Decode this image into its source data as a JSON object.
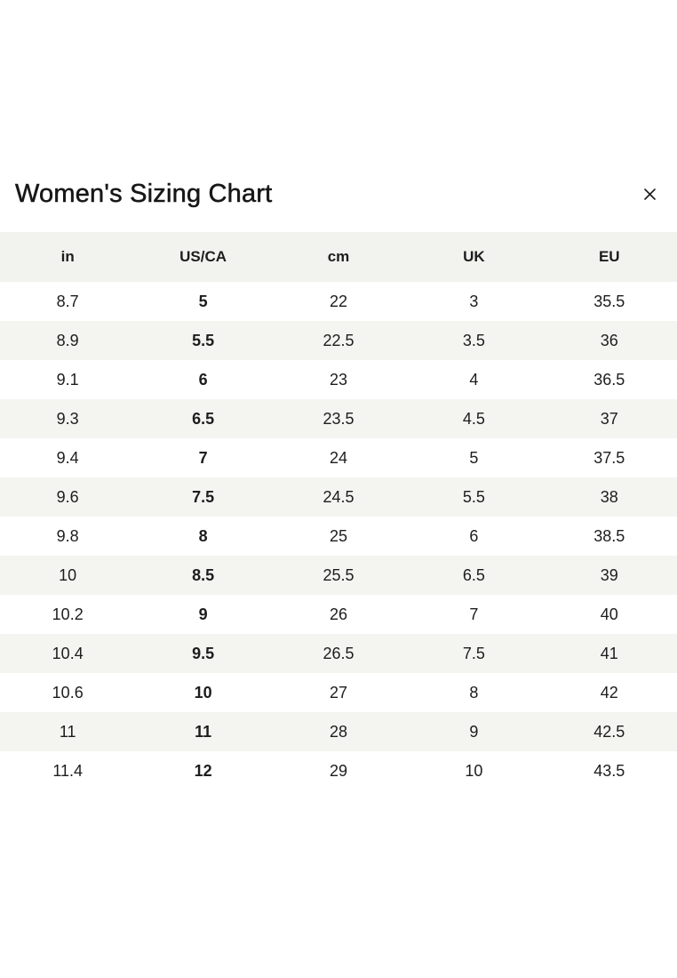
{
  "modal": {
    "title": "Women's Sizing Chart",
    "close_icon": "x-close-icon"
  },
  "sizing_table": {
    "headers": [
      "in",
      "US/CA",
      "cm",
      "UK",
      "EU"
    ],
    "bold_column": "US/CA",
    "rows": [
      [
        "8.7",
        "5",
        "22",
        "3",
        "35.5"
      ],
      [
        "8.9",
        "5.5",
        "22.5",
        "3.5",
        "36"
      ],
      [
        "9.1",
        "6",
        "23",
        "4",
        "36.5"
      ],
      [
        "9.3",
        "6.5",
        "23.5",
        "4.5",
        "37"
      ],
      [
        "9.4",
        "7",
        "24",
        "5",
        "37.5"
      ],
      [
        "9.6",
        "7.5",
        "24.5",
        "5.5",
        "38"
      ],
      [
        "9.8",
        "8",
        "25",
        "6",
        "38.5"
      ],
      [
        "10",
        "8.5",
        "25.5",
        "6.5",
        "39"
      ],
      [
        "10.2",
        "9",
        "26",
        "7",
        "40"
      ],
      [
        "10.4",
        "9.5",
        "26.5",
        "7.5",
        "41"
      ],
      [
        "10.6",
        "10",
        "27",
        "8",
        "42"
      ],
      [
        "11",
        "11",
        "28",
        "9",
        "42.5"
      ],
      [
        "11.4",
        "12",
        "29",
        "10",
        "43.5"
      ]
    ]
  },
  "colors": {
    "header_bg": "#f2f2ef",
    "stripe_bg": "#f4f4f1",
    "text": "#1d1d1d",
    "page_bg": "#ffffff"
  }
}
